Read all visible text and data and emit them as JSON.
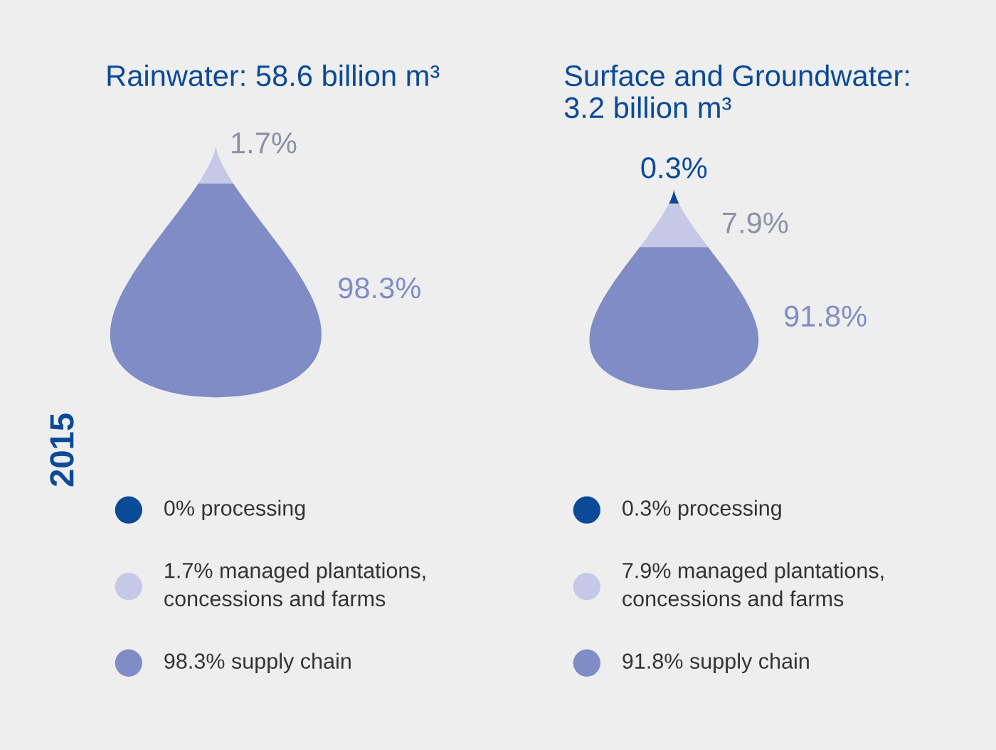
{
  "chart_data": [
    {
      "type": "other",
      "title": "Rainwater: 58.6 billion m³",
      "categories": [
        null,
        null,
        null
      ],
      "values": [
        null,
        1.7,
        98.3
      ],
      "value_labels": [
        null,
        "1.7%",
        "98.3%"
      ],
      "colors": [
        "#0b4a96",
        "#c5c8e6",
        "#7f8cc6"
      ],
      "annotations": [
        "0% processing",
        "1.7% managed plantations,\nconcessions and farms",
        "98.3% supply chain",
        "2015"
      ]
    },
    {
      "type": "other",
      "title": "Surface and Groundwater:\n3.2 billion m³",
      "categories": [
        null,
        null,
        null
      ],
      "values": [
        0.3,
        7.9,
        91.8
      ],
      "value_labels": [
        "0.3%",
        "7.9%",
        "91.8%"
      ],
      "colors": [
        "#0b4a96",
        "#c5c8e6",
        "#7f8cc6"
      ],
      "annotations": [
        "0.3% processing",
        "7.9% managed plantations,\nconcessions and farms",
        "91.8% supply chain"
      ]
    }
  ]
}
